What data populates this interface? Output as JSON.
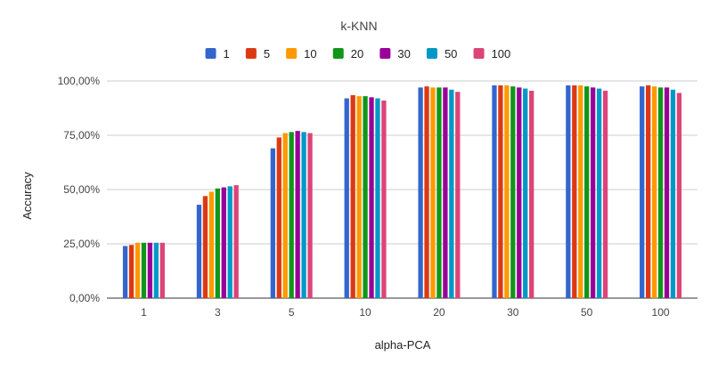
{
  "chart_data": {
    "type": "bar",
    "title": "k-KNN",
    "xlabel": "alpha-PCA",
    "ylabel": "Accuracy",
    "categories": [
      "1",
      "3",
      "5",
      "10",
      "20",
      "30",
      "50",
      "100"
    ],
    "ylim": [
      0,
      1
    ],
    "yticks": [
      0,
      0.25,
      0.5,
      0.75,
      1.0
    ],
    "ytick_labels": [
      "0,00%",
      "25,00%",
      "50,00%",
      "75,00%",
      "100,00%"
    ],
    "grid": true,
    "legend_position": "top",
    "series": [
      {
        "name": "1",
        "color": "#3366cc",
        "values": [
          0.24,
          0.43,
          0.69,
          0.92,
          0.97,
          0.98,
          0.98,
          0.975
        ]
      },
      {
        "name": "5",
        "color": "#dc3912",
        "values": [
          0.245,
          0.47,
          0.74,
          0.935,
          0.975,
          0.98,
          0.98,
          0.98
        ]
      },
      {
        "name": "10",
        "color": "#ff9900",
        "values": [
          0.255,
          0.49,
          0.76,
          0.93,
          0.97,
          0.98,
          0.98,
          0.975
        ]
      },
      {
        "name": "20",
        "color": "#109618",
        "values": [
          0.255,
          0.505,
          0.765,
          0.93,
          0.97,
          0.975,
          0.975,
          0.97
        ]
      },
      {
        "name": "30",
        "color": "#990099",
        "values": [
          0.255,
          0.51,
          0.77,
          0.925,
          0.97,
          0.97,
          0.97,
          0.97
        ]
      },
      {
        "name": "50",
        "color": "#0099c6",
        "values": [
          0.255,
          0.515,
          0.765,
          0.92,
          0.96,
          0.965,
          0.965,
          0.96
        ]
      },
      {
        "name": "100",
        "color": "#dd4477",
        "values": [
          0.255,
          0.52,
          0.76,
          0.91,
          0.95,
          0.955,
          0.955,
          0.945
        ]
      }
    ]
  }
}
